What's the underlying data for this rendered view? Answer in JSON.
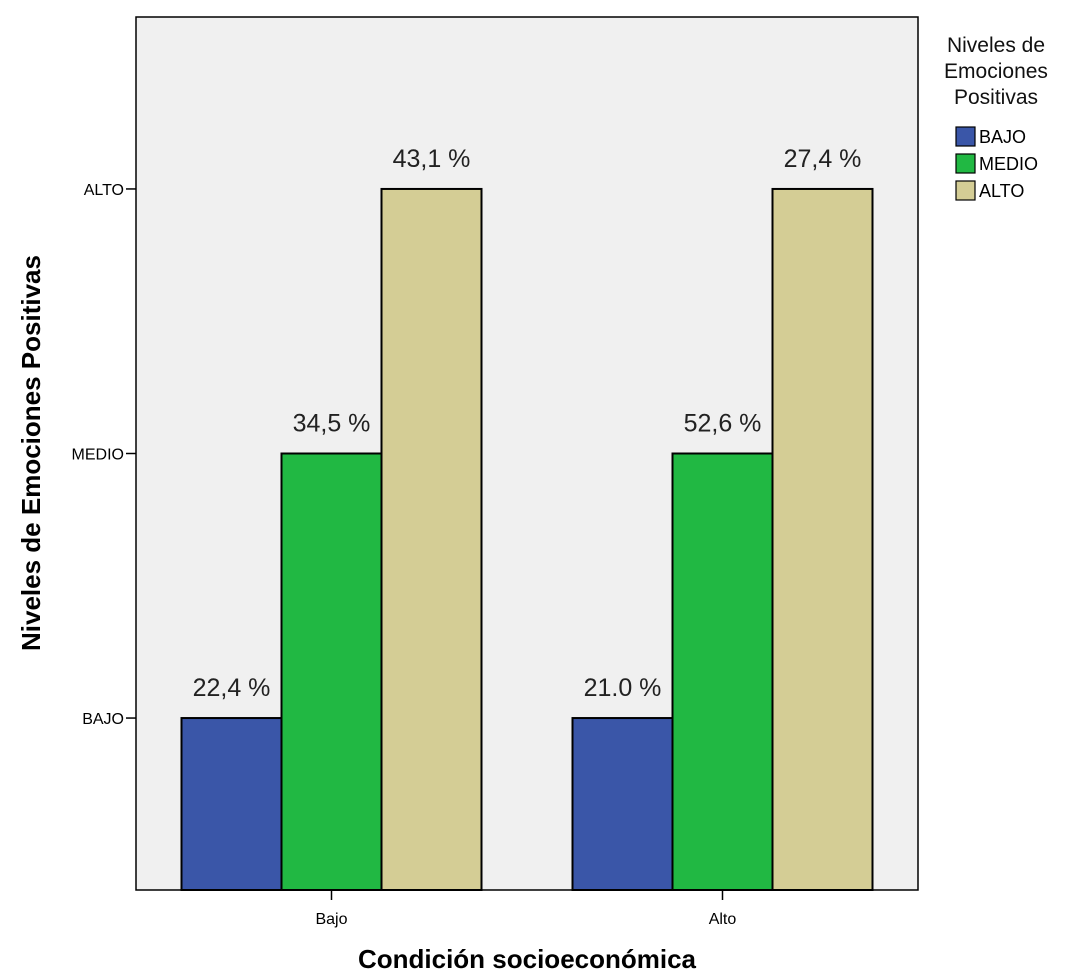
{
  "chart_data": {
    "type": "bar",
    "categories": [
      "Bajo",
      "Alto"
    ],
    "y_categories": [
      "BAJO",
      "MEDIO",
      "ALTO"
    ],
    "series": [
      {
        "name": "BAJO",
        "color": "#3a56a8",
        "values": [
          1,
          1
        ],
        "labels": [
          "22,4 %",
          "21.0  %"
        ]
      },
      {
        "name": "MEDIO",
        "color": "#21b843",
        "values": [
          2,
          2
        ],
        "labels": [
          "34,5 %",
          "52,6 %"
        ]
      },
      {
        "name": "ALTO",
        "color": "#d4cd95",
        "values": [
          3,
          3
        ],
        "labels": [
          "43,1 %",
          "27,4 %"
        ]
      }
    ],
    "xlabel": "Condición socioeconómica",
    "ylabel": "Niveles de Emociones Positivas",
    "ylim": [
      0.35,
      3.65
    ],
    "legend": {
      "title_lines": [
        "Niveles de",
        "Emociones",
        "Positivas"
      ],
      "position": "right"
    },
    "plot_background": "#f0f0f0",
    "grid": false
  }
}
